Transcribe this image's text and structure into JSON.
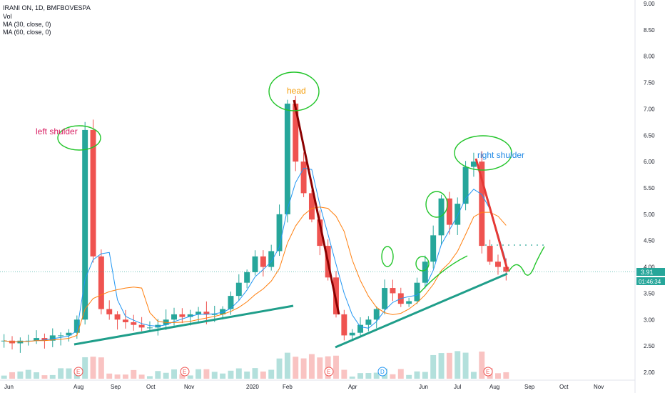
{
  "header": {
    "symbol_line": "IRANI ON, 1D, BMFBOVESPA",
    "volume_label": "Vol",
    "ma30_label": "MA (30, close, 0)",
    "ma60_label": "MA (60, close, 0)"
  },
  "colors": {
    "up": "#26a69a",
    "down": "#ef5350",
    "ma30": "#2196f3",
    "ma60": "#ff7f0e",
    "trendline_support": "#1f9e8a",
    "trendline_dark_red": "#8b0000",
    "trendline_red": "#e53935",
    "circle_marker": "#22c52a",
    "price_line": "#26a69a"
  },
  "chart_data": {
    "type": "candlestick",
    "title": "IRANI ON, 1D, BMFBOVESPA",
    "y_axis": {
      "ticks": [
        "9.00",
        "8.50",
        "8.00",
        "7.50",
        "7.00",
        "6.50",
        "6.00",
        "5.50",
        "5.00",
        "4.50",
        "4.00",
        "3.50",
        "3.00",
        "2.50",
        "2.00"
      ],
      "range": [
        2.0,
        9.0
      ]
    },
    "x_axis": {
      "ticks": [
        "Jun",
        "Aug",
        "Sep",
        "Oct",
        "Nov",
        "2020",
        "Feb",
        "Apr",
        "Jun",
        "Jul",
        "Aug",
        "Sep",
        "Oct",
        "Nov"
      ]
    },
    "last_price": "3.91",
    "countdown": "01:46:34",
    "indicators": [
      "Vol",
      "MA (30, close, 0)",
      "MA (60, close, 0)"
    ],
    "price_series_close": [
      2.6,
      2.55,
      2.6,
      2.6,
      2.65,
      2.6,
      2.7,
      2.7,
      2.75,
      3.0,
      6.6,
      4.2,
      3.2,
      3.1,
      3.0,
      2.95,
      2.9,
      2.85,
      2.85,
      2.9,
      3.0,
      3.1,
      3.05,
      3.1,
      3.15,
      3.1,
      3.1,
      3.2,
      3.45,
      3.7,
      3.9,
      4.2,
      4.0,
      4.3,
      5.0,
      7.1,
      6.0,
      5.4,
      4.9,
      4.4,
      3.8,
      3.1,
      2.7,
      2.75,
      2.9,
      3.0,
      3.2,
      3.6,
      3.5,
      3.3,
      3.35,
      3.7,
      4.1,
      4.6,
      5.3,
      4.8,
      5.2,
      5.9,
      6.0,
      4.4,
      4.1,
      4.0,
      3.91
    ],
    "annotations": [
      "left shulder",
      "head",
      "right shulder"
    ],
    "event_markers": [
      "E",
      "E",
      "E",
      "D",
      "E"
    ]
  },
  "annotations": {
    "left_shoulder": "left shulder",
    "head": "head",
    "right_shoulder": "right shulder"
  },
  "markers": {
    "earnings": "E",
    "dividend": "D"
  }
}
